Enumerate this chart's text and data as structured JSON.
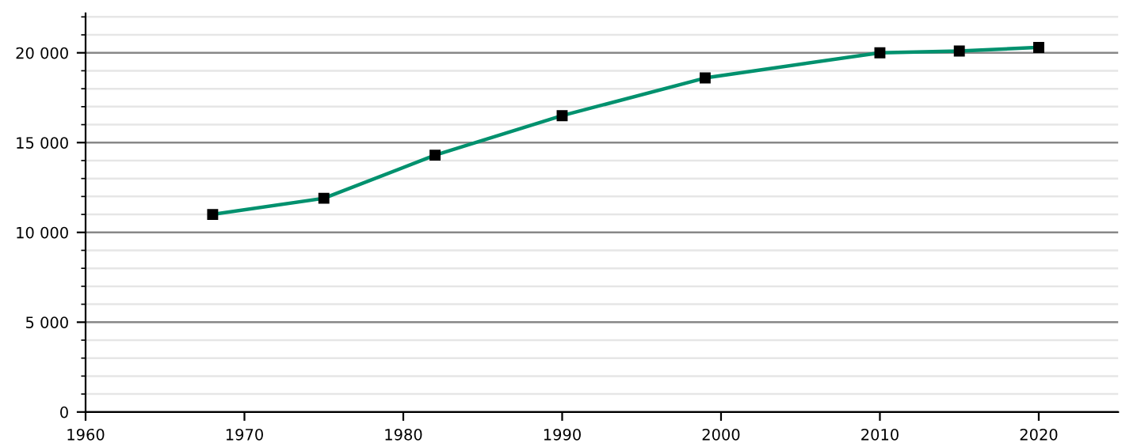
{
  "chart_data": {
    "type": "line",
    "x": [
      1968,
      1975,
      1982,
      1990,
      1999,
      2010,
      2015,
      2020
    ],
    "series": [
      {
        "color": "#00916e",
        "values": [
          11000,
          11900,
          14300,
          16500,
          18600,
          20000,
          20100,
          20300
        ]
      }
    ],
    "xlim": [
      1960,
      2025
    ],
    "xticks": [
      1960,
      1970,
      1980,
      1990,
      2000,
      2010,
      2020
    ],
    "ylim": [
      0,
      22200
    ],
    "yticks": [
      {
        "value": 0,
        "label": "0"
      },
      {
        "value": 5000,
        "label": "5 000"
      },
      {
        "value": 10000,
        "label": "10 000"
      },
      {
        "value": 15000,
        "label": "15 000"
      },
      {
        "value": 20000,
        "label": "20 000"
      }
    ],
    "grid": "y",
    "marker": "square",
    "line_style": "solid"
  }
}
